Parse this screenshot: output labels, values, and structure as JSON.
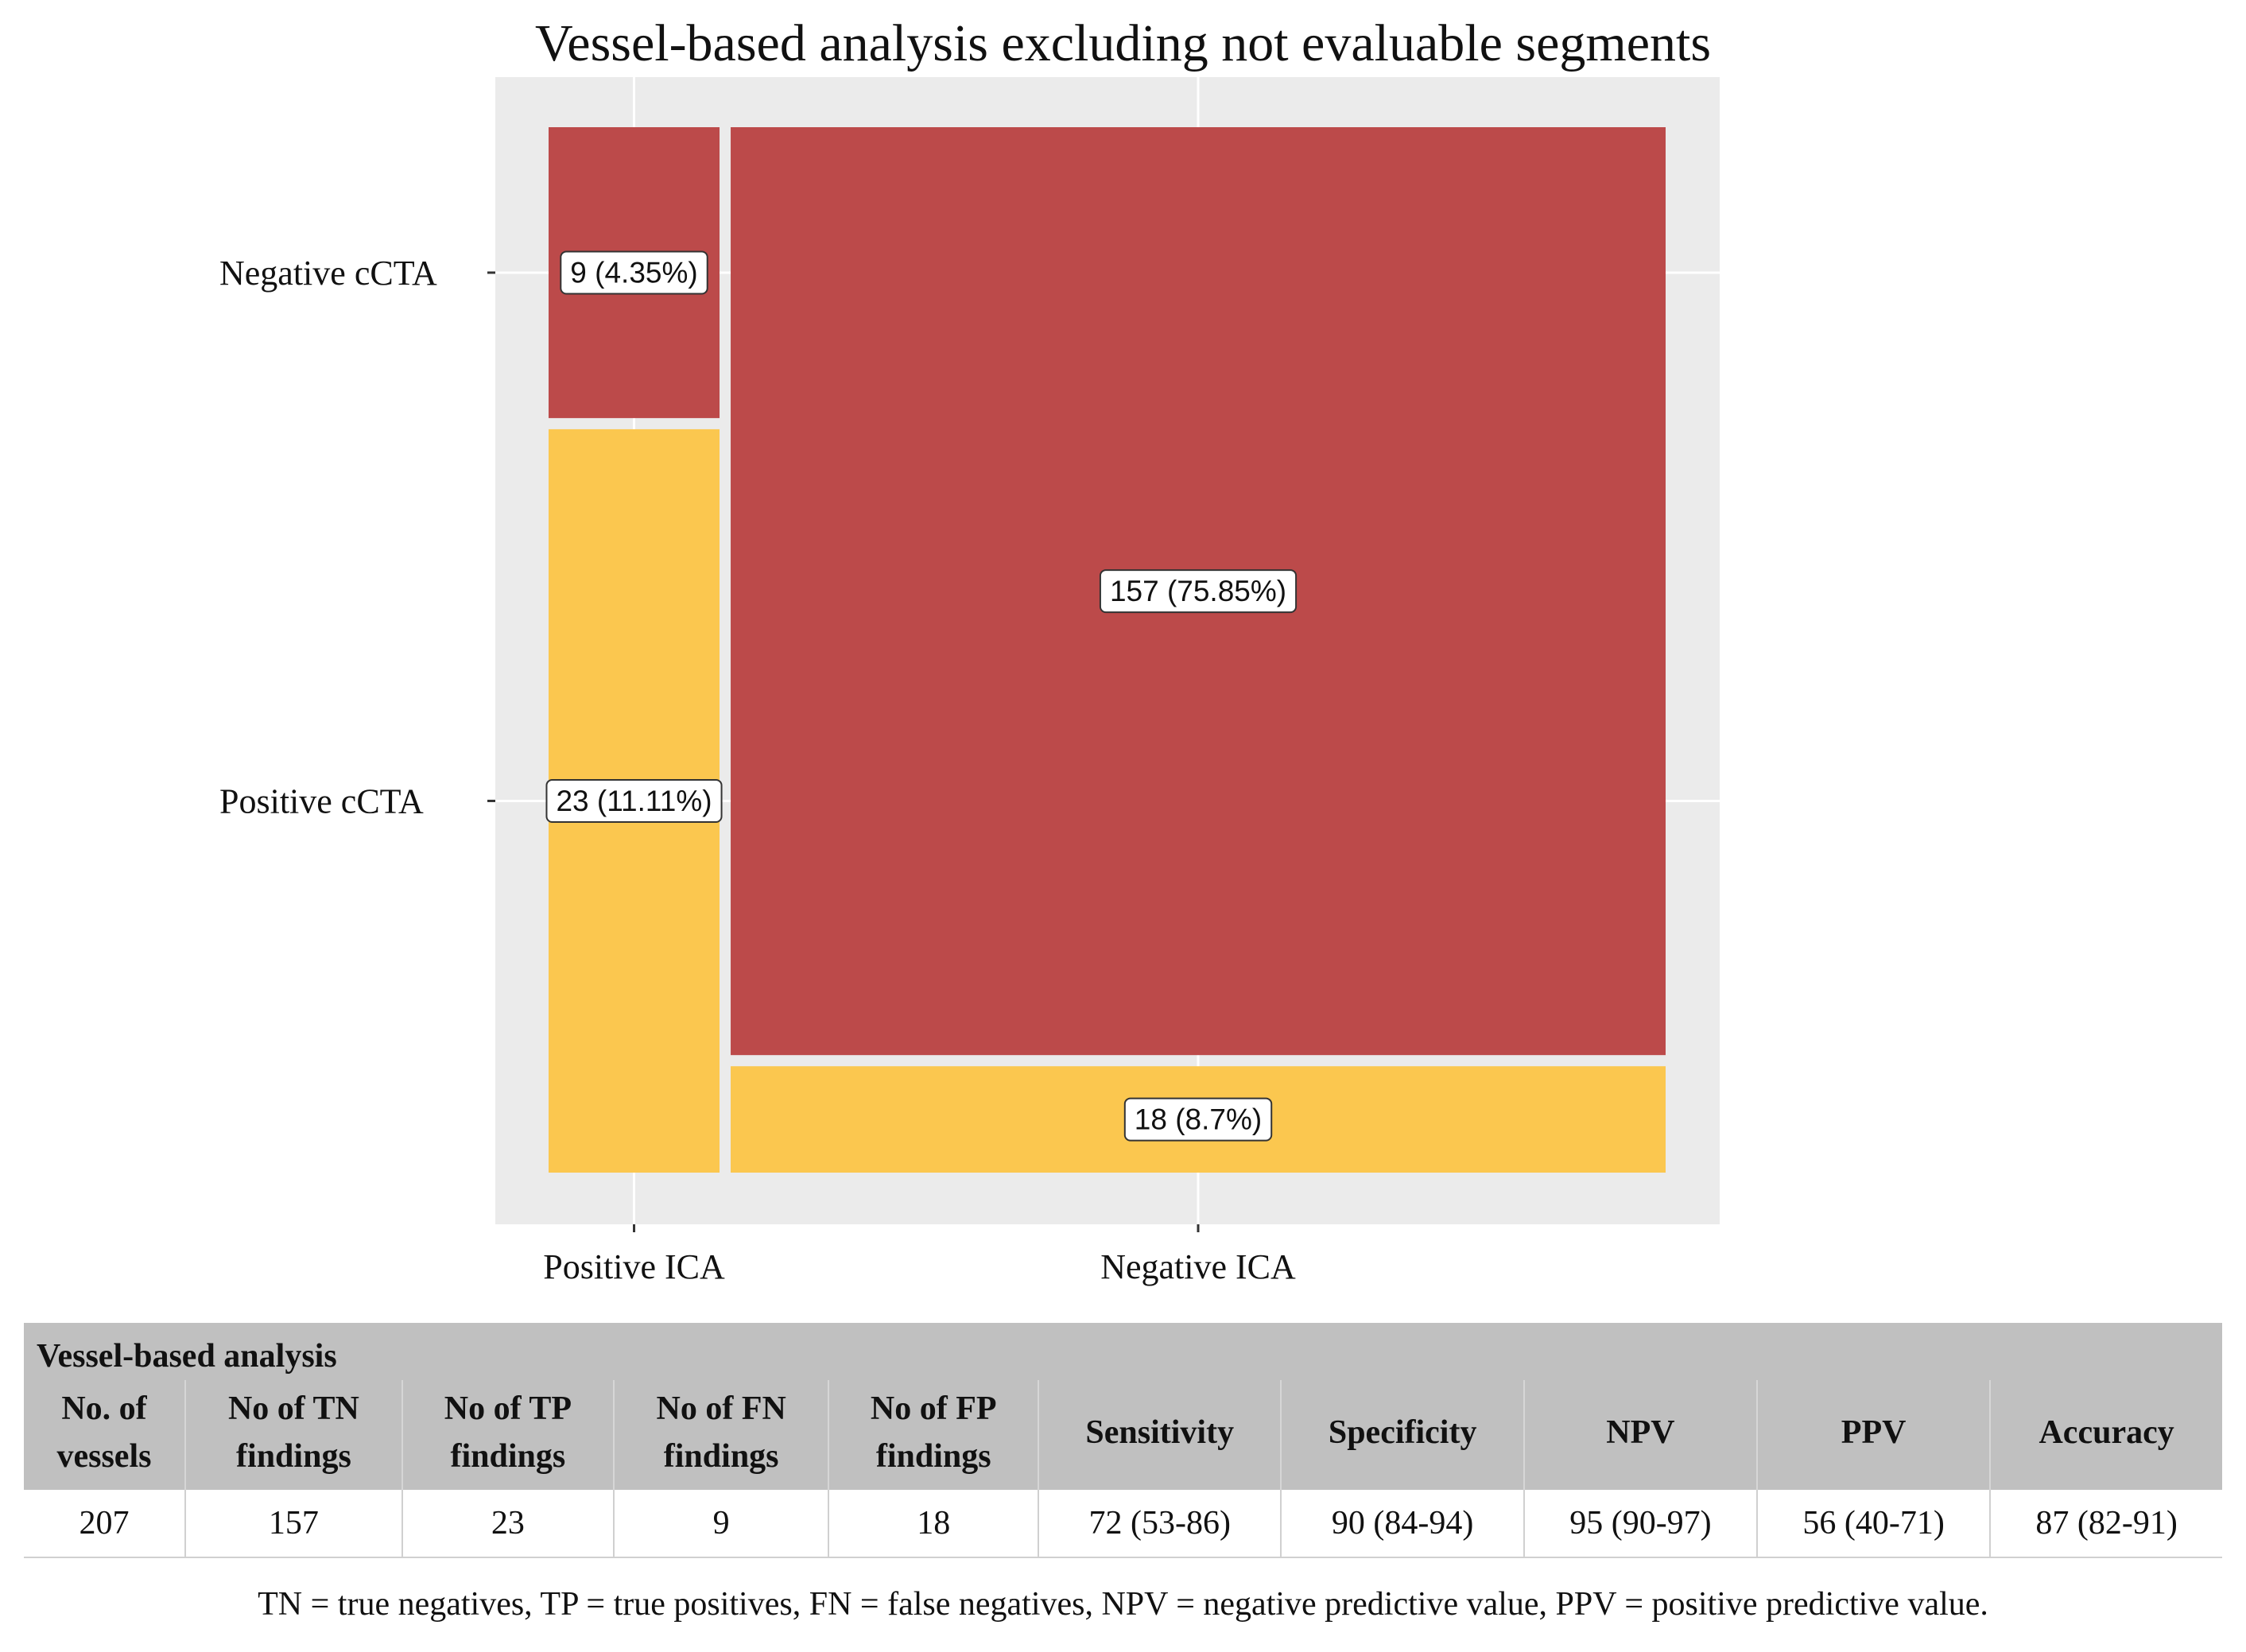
{
  "chart_data": {
    "type": "mosaic",
    "title": "Vessel-based analysis excluding not evaluable segments",
    "x_categories": [
      "Positive ICA",
      "Negative ICA"
    ],
    "y_categories": [
      "Negative cCTA",
      "Positive cCTA"
    ],
    "cells": [
      {
        "x": "Positive ICA",
        "y": "Negative cCTA",
        "count": 9,
        "label": "9 (4.35%)",
        "color": "#bc4a4a"
      },
      {
        "x": "Positive ICA",
        "y": "Positive cCTA",
        "count": 23,
        "label": "23 (11.11%)",
        "color": "#fbc74f"
      },
      {
        "x": "Negative ICA",
        "y": "Negative cCTA",
        "count": 157,
        "label": "157 (75.85%)",
        "color": "#bc4a4a"
      },
      {
        "x": "Negative ICA",
        "y": "Positive cCTA",
        "count": 18,
        "label": "18 (8.7%)",
        "color": "#fbc74f"
      }
    ],
    "panel_background": "#ebebeb",
    "grid_color": "#ffffff"
  },
  "table": {
    "caption": "Vessel-based analysis",
    "headers": [
      [
        "No. of",
        "vessels"
      ],
      [
        "No of TN",
        "findings"
      ],
      [
        "No of TP",
        "findings"
      ],
      [
        "No of FN",
        "findings"
      ],
      [
        "No of FP",
        "findings"
      ],
      [
        "Sensitivity"
      ],
      [
        "Specificity"
      ],
      [
        "NPV"
      ],
      [
        "PPV"
      ],
      [
        "Accuracy"
      ]
    ],
    "values": [
      "207",
      "157",
      "23",
      "9",
      "18",
      "72 (53-86)",
      "90 (84-94)",
      "95 (90-97)",
      "56 (40-71)",
      "87 (82-91)"
    ]
  },
  "footnote": "TN = true negatives, TP = true positives, FN = false negatives, NPV = negative predictive value, PPV = positive predictive value."
}
